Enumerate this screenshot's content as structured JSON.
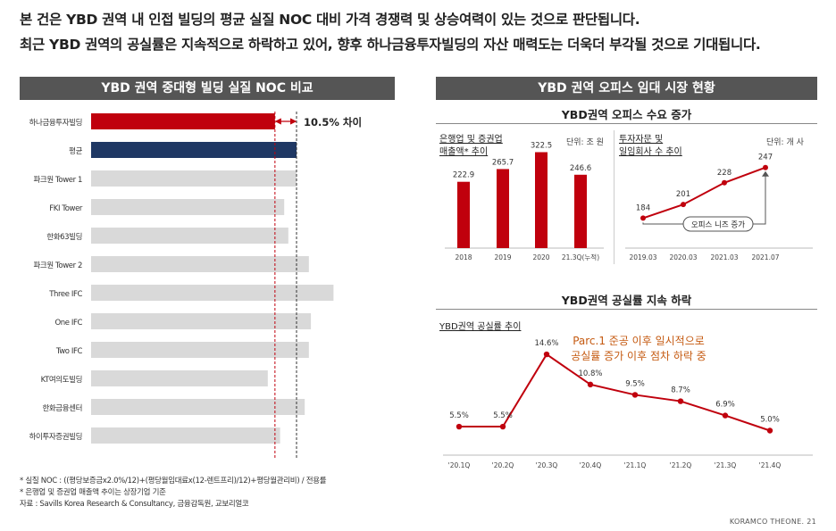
{
  "headline": {
    "line1": "본 건은 YBD 권역 내 인접 빌딩의 평균 실질 NOC 대비 가격 경쟁력 및 상승여력이 있는 것으로 판단됩니다.",
    "line2": "최근 YBD 권역의 공실률은 지속적으로 하락하고 있어, 향후 하나금융투자빌딩의 자산 매력도는 더욱더 부각될 것으로 기대됩니다."
  },
  "left_panel": {
    "banner": "YBD 권역 중대형 빌딩 실질 NOC 비교",
    "diff_label": "10.5% 차이",
    "notes": [
      "* 실질 NOC : ((평당보증금x2.0%/12)+(평당월임대료x(12-렌트프리)/12)+평당월관리비) / 전용률",
      "* 은행업 및 증권업 매출액 추이는 상장기업 기준",
      "자료 : Savills Korea Research & Consultancy, 금융감독원, 교보리얼코"
    ]
  },
  "right_panel": {
    "banner": "YBD 권역 오피스 임대 시장 현황",
    "demand_title": "YBD권역 오피스 수요 증가",
    "vacancy_title": "YBD권역 공실률 지속 하락",
    "bank_chart_label_1": "은행업 및 증권업",
    "bank_chart_label_2": "매출액* 추이",
    "bank_unit": "단위: 조 원",
    "firm_chart_label_1": "투자자문 및",
    "firm_chart_label_2": "일임회사 수 추이",
    "firm_unit": "단위: 개 사",
    "firm_callout": "오피스 니즈 증가",
    "vacancy_chart_label": "YBD권역 공실률 추이",
    "vacancy_annotation_1": "Parc.1 준공 이후 일시적으로",
    "vacancy_annotation_2": "공실률 증가 이후 점차 하락 중"
  },
  "footer": "KORAMCO THEONE. 21",
  "colors": {
    "red": "#c0000d",
    "navy": "#1f3864",
    "gray_bar": "#d9d9d9",
    "banner": "#555555",
    "annotation": "#c55a11"
  },
  "chart_data": [
    {
      "type": "bar",
      "orientation": "horizontal",
      "title": "YBD 권역 중대형 빌딩 실질 NOC 비교",
      "categories": [
        "하나금융투자빌딩",
        "평균",
        "파크원 Tower 1",
        "FKI Tower",
        "한화63빌딩",
        "파크원 Tower 2",
        "Three IFC",
        "One IFC",
        "Two IFC",
        "KT여의도빌딩",
        "한화금융센터",
        "하이투자증권빌딩"
      ],
      "values": [
        89.5,
        100,
        100,
        94,
        96,
        106,
        118,
        107,
        106,
        86,
        104,
        92
      ],
      "highlight": {
        "하나금융투자빌딩": "#c0000d",
        "평균": "#1f3864"
      },
      "value_note": "relative scale, 평균 = 100; 하나금융투자빌딩 is 10.5% below 평균"
    },
    {
      "type": "bar",
      "title": "은행업 및 증권업 매출액* 추이",
      "categories": [
        "2018",
        "2019",
        "2020",
        "21.3Q(누적)"
      ],
      "values": [
        222.9,
        265.7,
        322.5,
        246.6
      ],
      "unit": "단위: 조 원"
    },
    {
      "type": "line",
      "title": "투자자문 및 일임회사 수 추이",
      "categories": [
        "2019.03",
        "2020.03",
        "2021.03",
        "2021.07"
      ],
      "values": [
        184,
        201,
        228,
        247
      ],
      "unit": "단위: 개 사"
    },
    {
      "type": "line",
      "title": "YBD권역 공실률 추이",
      "categories": [
        "'20.1Q",
        "'20.2Q",
        "'20.3Q",
        "'20.4Q",
        "'21.1Q",
        "'21.2Q",
        "'21.3Q",
        "'21.4Q"
      ],
      "values": [
        5.5,
        5.5,
        14.6,
        10.8,
        9.5,
        8.7,
        6.9,
        5.0
      ],
      "labels": [
        "5.5%",
        "5.5%",
        "14.6%",
        "10.8%",
        "9.5%",
        "8.7%",
        "6.9%",
        "5.0%"
      ]
    }
  ]
}
